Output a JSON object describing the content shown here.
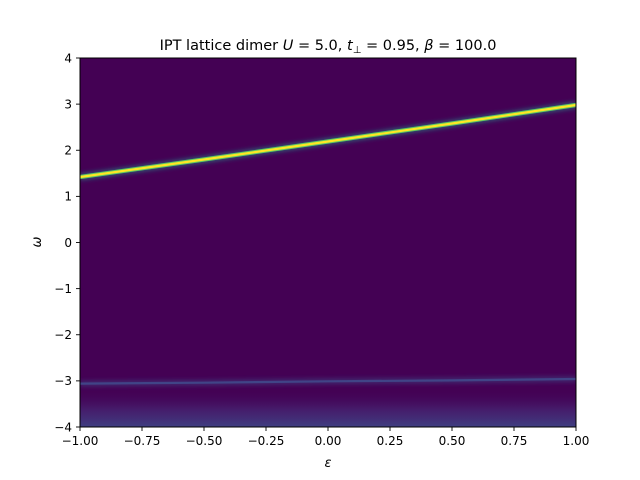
{
  "chart_data": {
    "type": "heatmap",
    "title": "IPT lattice dimer U = 5.0, t⊥ = 0.95, β = 100.0",
    "title_parts": {
      "prefix": "IPT lattice dimer ",
      "u_symbol": "U",
      "u_value": " = 5.0, ",
      "t_symbol": "t",
      "t_sub": "⊥",
      "t_value": " = 0.95, ",
      "beta_symbol": "β",
      "beta_value": " = 100.0"
    },
    "xlabel": "ε",
    "ylabel": "ω",
    "xlim": [
      -1.0,
      1.0
    ],
    "ylim": [
      -4.0,
      4.0
    ],
    "x_ticks": [
      -1.0,
      -0.75,
      -0.5,
      -0.25,
      0.0,
      0.25,
      0.5,
      0.75,
      1.0
    ],
    "x_tick_labels": [
      "−1.00",
      "−0.75",
      "−0.50",
      "−0.25",
      "0.00",
      "0.25",
      "0.50",
      "0.75",
      "1.00"
    ],
    "y_ticks": [
      -4,
      -3,
      -2,
      -1,
      0,
      1,
      2,
      3,
      4
    ],
    "y_tick_labels": [
      "−4",
      "−3",
      "−2",
      "−1",
      "0",
      "1",
      "2",
      "3",
      "4"
    ],
    "colormap": "viridis",
    "background_color": "#440154",
    "upper_band": {
      "epsilon": [
        -1.0,
        -0.5,
        0.0,
        0.5,
        1.0
      ],
      "omega": [
        1.42,
        1.8,
        2.19,
        2.58,
        2.98
      ],
      "color": "#fde725"
    },
    "lower_band": {
      "epsilon": [
        -1.0,
        -0.5,
        0.0,
        0.5,
        1.0
      ],
      "omega": [
        -3.06,
        -3.04,
        -3.01,
        -2.99,
        -2.96
      ],
      "color": "#3b528b"
    },
    "grid": false,
    "legend": false
  }
}
